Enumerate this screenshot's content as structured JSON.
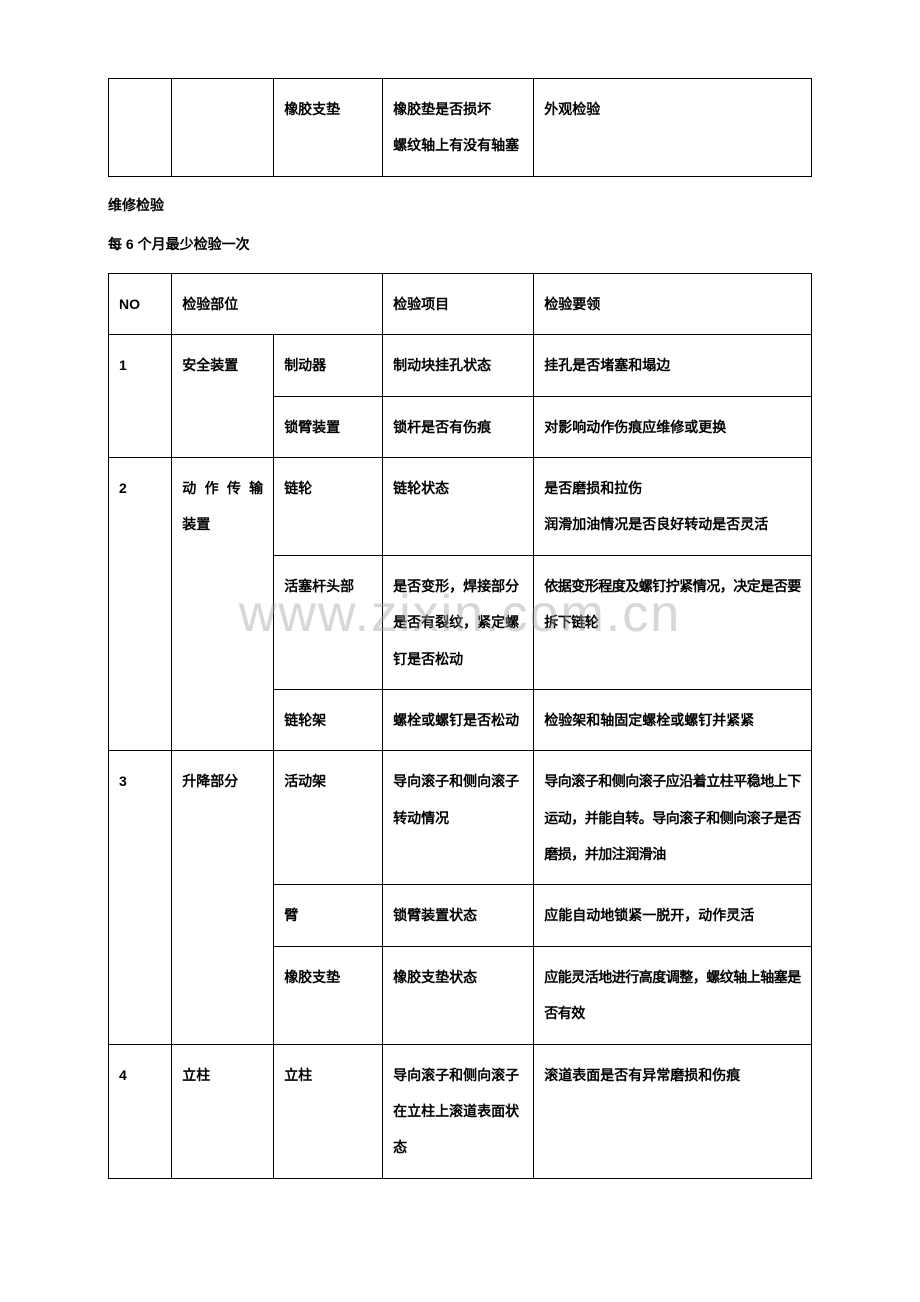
{
  "watermark": "www.zixin.com.cn",
  "table1": {
    "colwidths": [
      "9%",
      "14.5%",
      "15.5%",
      "21.5%",
      "39.5%"
    ],
    "rows": [
      [
        "",
        "",
        "橡胶支垫",
        "橡胶垫是否损坏\n螺纹轴上有没有轴塞",
        "外观检验"
      ]
    ]
  },
  "section": {
    "title": "维修检验",
    "sub": "每 6 个月最少检验一次"
  },
  "table2": {
    "colwidths": [
      "9%",
      "14.5%",
      "15.5%",
      "21.5%",
      "39.5%"
    ],
    "header": [
      "NO",
      "检验部位",
      "检验项目",
      "检验要领"
    ],
    "rows": [
      {
        "no": "1",
        "site": "安全装置",
        "items": [
          {
            "c": "制动器",
            "d": "制动块挂孔状态",
            "e": "挂孔是否堵塞和塌边"
          },
          {
            "c": "锁臂装置",
            "d": "锁杆是否有伤痕",
            "e": "对影响动作伤痕应维修或更换"
          }
        ]
      },
      {
        "no": "2",
        "site": "动 作 传 输 装置",
        "items": [
          {
            "c": "链轮",
            "d": "链轮状态",
            "e": "是否磨损和拉伤\n润滑加油情况是否良好转动是否灵活"
          },
          {
            "c": "活塞杆头部",
            "d": "是否变形，焊接部分是否有裂纹，紧定螺钉是否松动",
            "e": "依据变形程度及螺钉拧紧情况，决定是否要拆下链轮"
          },
          {
            "c": "链轮架",
            "d": "螺栓或螺钉是否松动",
            "e": "检验架和轴固定螺栓或螺钉并紧紧"
          }
        ]
      },
      {
        "no": "3",
        "site": "升降部分",
        "items": [
          {
            "c": "活动架",
            "d": "导向滚子和侧向滚子转动情况",
            "e": "导向滚子和侧向滚子应沿着立柱平稳地上下运动，并能自转。导向滚子和侧向滚子是否磨损，并加注润滑油"
          },
          {
            "c": "臂",
            "d": "锁臂装置状态",
            "e": "应能自动地锁紧一脱开，动作灵活"
          },
          {
            "c": "橡胶支垫",
            "d": "橡胶支垫状态",
            "e": "应能灵活地进行高度调整，螺纹轴上轴塞是否有效"
          }
        ]
      },
      {
        "no": "4",
        "site": "立柱",
        "items": [
          {
            "c": "立柱",
            "d": "导向滚子和侧向滚子在立柱上滚道表面状态",
            "e": "滚道表面是否有异常磨损和伤痕"
          }
        ]
      }
    ]
  }
}
